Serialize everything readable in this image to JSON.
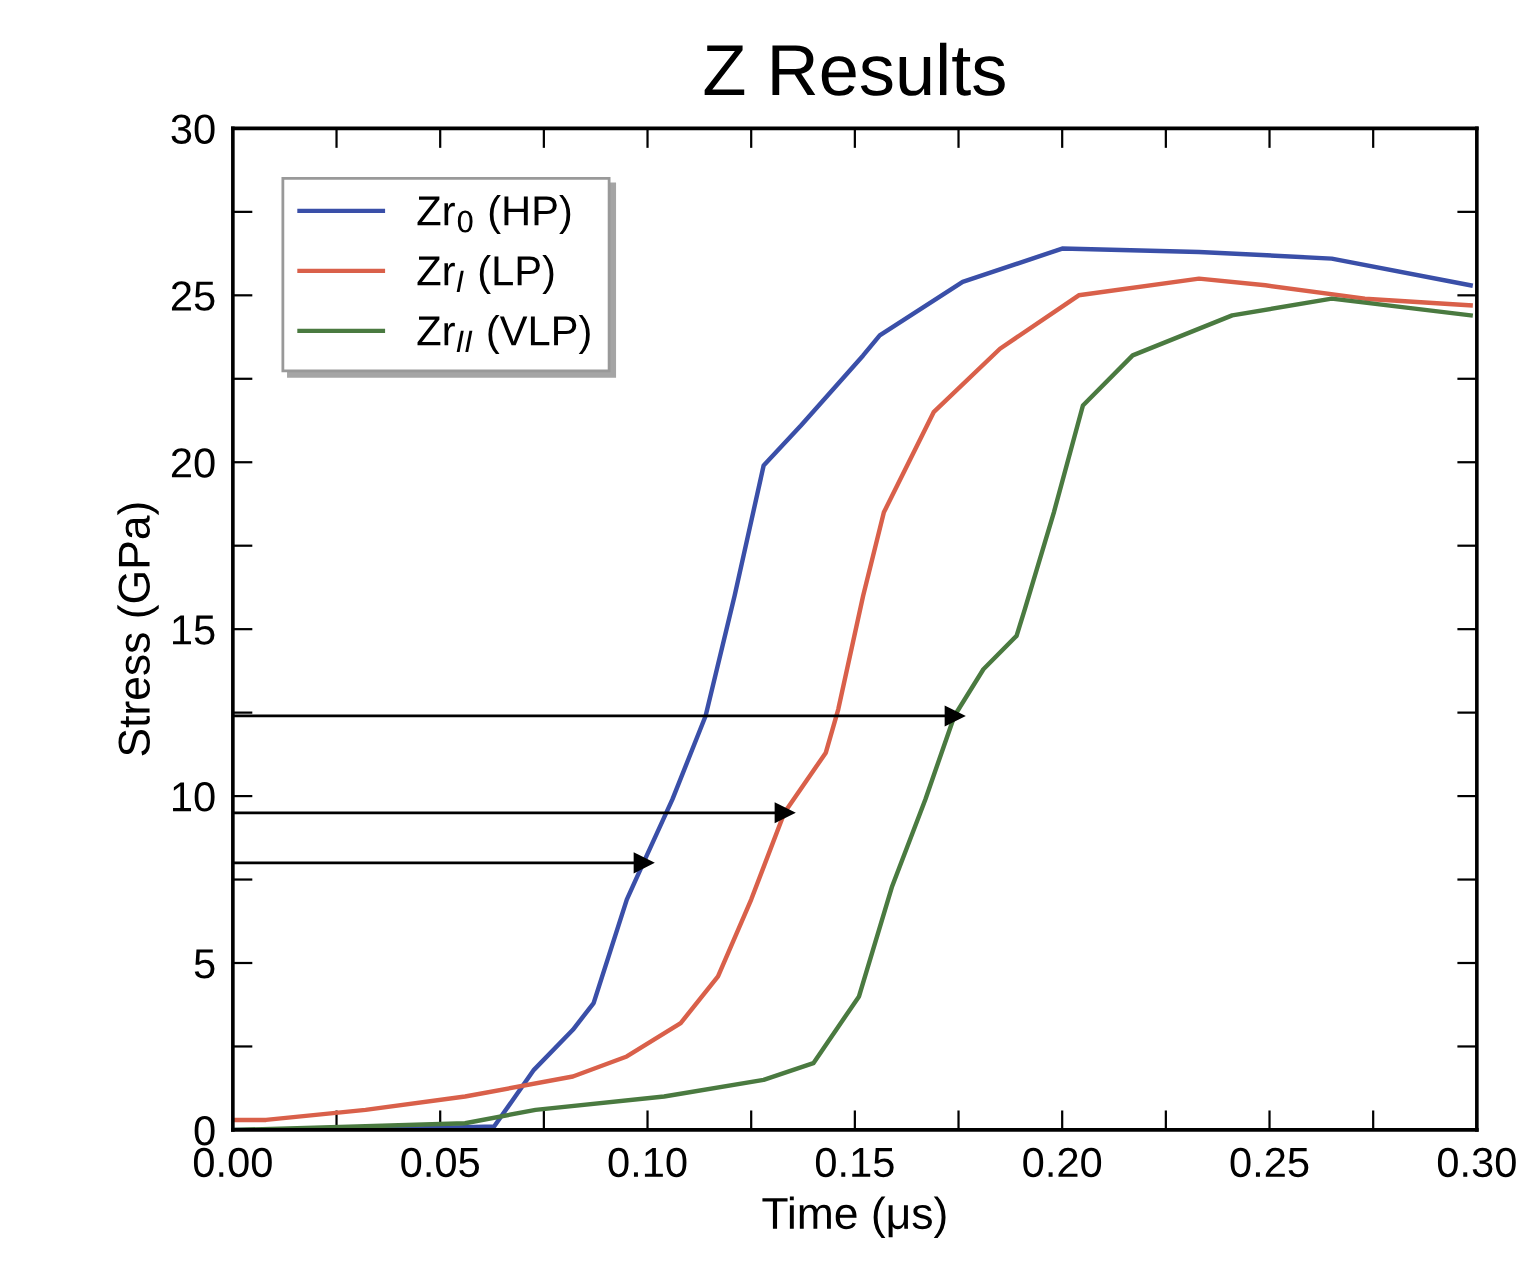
{
  "chart_data": {
    "type": "line",
    "title": "Z Results",
    "xlabel": "Time (μs)",
    "ylabel": "Stress (GPa)",
    "xlim": [
      0,
      0.3
    ],
    "ylim": [
      0,
      30
    ],
    "xticks": [
      {
        "value": 0,
        "label": "0.00"
      },
      {
        "value": 0.025,
        "label": null
      },
      {
        "value": 0.05,
        "label": "0.05"
      },
      {
        "value": 0.075,
        "label": null
      },
      {
        "value": 0.1,
        "label": "0.10"
      },
      {
        "value": 0.125,
        "label": null
      },
      {
        "value": 0.15,
        "label": "0.15"
      },
      {
        "value": 0.175,
        "label": null
      },
      {
        "value": 0.2,
        "label": "0.20"
      },
      {
        "value": 0.225,
        "label": null
      },
      {
        "value": 0.25,
        "label": "0.25"
      },
      {
        "value": 0.275,
        "label": null
      },
      {
        "value": 0.3,
        "label": "0.30"
      }
    ],
    "yticks": [
      0,
      {
        "value": 2.5,
        "label": null
      },
      5,
      {
        "value": 7.5,
        "label": null
      },
      10,
      {
        "value": 12.5,
        "label": null
      },
      15,
      {
        "value": 17.5,
        "label": null
      },
      20,
      {
        "value": 22.5,
        "label": null
      },
      25,
      {
        "value": 27.5,
        "label": null
      },
      30
    ],
    "grid": false,
    "legend": "top left",
    "marker": "none",
    "line_style": "solid",
    "series": [
      {
        "name": "Zr$_{0}$ (HP)",
        "color": "#3a4fa8",
        "x": [
          0,
          0.03,
          0.063,
          0.0726,
          0.082,
          0.087,
          0.095,
          0.099,
          0.106,
          0.114,
          0.121,
          0.128,
          0.137,
          0.152,
          0.156,
          0.176,
          0.2,
          0.233,
          0.265,
          0.2985
        ],
        "values": [
          0,
          0,
          0.1,
          1.8,
          3.0,
          3.8,
          6.9,
          8.0,
          9.9,
          12.4,
          16.0,
          19.9,
          21.1,
          23.2,
          23.8,
          25.4,
          26.4,
          26.3,
          26.1,
          25.3
        ]
      },
      {
        "name": "Zr$_{I}$ (LP)",
        "color": "#d9604a",
        "x": [
          0,
          0.008,
          0.032,
          0.056,
          0.082,
          0.095,
          0.108,
          0.117,
          0.125,
          0.133,
          0.143,
          0.146,
          0.152,
          0.157,
          0.169,
          0.185,
          0.204,
          0.233,
          0.249,
          0.273,
          0.2985
        ],
        "values": [
          0.3,
          0.3,
          0.6,
          1.0,
          1.6,
          2.2,
          3.2,
          4.6,
          6.9,
          9.5,
          11.3,
          12.6,
          16.0,
          18.5,
          21.5,
          23.4,
          25.0,
          25.5,
          25.3,
          24.9,
          24.7
        ]
      },
      {
        "name": "Zr$_{II}$ (VLP)",
        "color": "#4a7a40",
        "x": [
          0,
          0.03,
          0.056,
          0.073,
          0.104,
          0.128,
          0.14,
          0.151,
          0.159,
          0.167,
          0.174,
          0.181,
          0.189,
          0.191,
          0.198,
          0.205,
          0.217,
          0.241,
          0.265,
          0.2985
        ],
        "values": [
          0,
          0.1,
          0.2,
          0.6,
          1.0,
          1.5,
          2.0,
          4.0,
          7.3,
          9.9,
          12.4,
          13.8,
          14.8,
          15.6,
          18.5,
          21.7,
          23.2,
          24.4,
          24.9,
          24.4
        ]
      },
      {
        "color": "#000000",
        "marker": "triangle",
        "x": [
          0,
          0.174
        ],
        "values": [
          12.4,
          12.4
        ]
      },
      {
        "color": "#000000",
        "marker": "triangle",
        "x": [
          0,
          0.133
        ],
        "values": [
          9.5,
          9.5
        ]
      },
      {
        "color": "#000000",
        "marker": "triangle",
        "x": [
          0,
          0.099
        ],
        "values": [
          8.0,
          8.0
        ]
      }
    ]
  }
}
